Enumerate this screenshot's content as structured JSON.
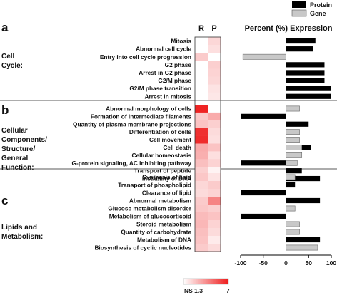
{
  "chart_data": {
    "type": "bar",
    "bar_title": "Percent (%) Expression",
    "heatmap_columns": [
      "R",
      "P"
    ],
    "x_ticks": [
      "-100",
      "-50",
      "0",
      "50",
      "100"
    ],
    "xlim": [
      -100,
      100
    ],
    "color_scale": {
      "low_label": "NS 1.3",
      "high_label": "7",
      "low_value": 1.3,
      "high_value": 7,
      "low_color": "#ffffff",
      "high_color": "#ee1c1c"
    },
    "legend": {
      "protein_label": "Protein",
      "gene_label": "Gene",
      "protein_color": "#000000",
      "gene_color": "#c8c8c8"
    },
    "series_names": [
      "Protein",
      "Gene"
    ],
    "sections": [
      {
        "letter": "a",
        "title": "Cell Cycle:",
        "rows": [
          {
            "label": "Mitosis",
            "R": 1.3,
            "P": 2.3,
            "protein": 65,
            "gene": null
          },
          {
            "label": "Abnormal cell cycle",
            "R": 1.3,
            "P": 2.1,
            "protein": 60,
            "gene": null
          },
          {
            "label": "Entry into cell cycle progression",
            "R": 2.6,
            "P": 1.3,
            "protein": null,
            "gene": -95
          },
          {
            "label": "G2 phase",
            "R": 1.3,
            "P": 2.5,
            "protein": 85,
            "gene": null
          },
          {
            "label": "Arrest in G2 phase",
            "R": 1.3,
            "P": 2.4,
            "protein": 85,
            "gene": null
          },
          {
            "label": "G2/M phase",
            "R": 1.3,
            "P": 2.3,
            "protein": 85,
            "gene": null
          },
          {
            "label": "G2/M phase transition",
            "R": 1.3,
            "P": 2.0,
            "protein": 100,
            "gene": null
          },
          {
            "label": "Arrest in mitosis",
            "R": 1.3,
            "P": 1.9,
            "protein": 100,
            "gene": null
          }
        ]
      },
      {
        "letter": "b",
        "title": "Cellular Components/ Structure/ General Function:",
        "rows": [
          {
            "label": "Abnormal morphology of cells",
            "R": 6.8,
            "P": 1.3,
            "protein": null,
            "gene": 30
          },
          {
            "label": "Formation of intermediate filaments",
            "R": 2.6,
            "P": 3.4,
            "protein": -100,
            "gene": null
          },
          {
            "label": "Quantity of plasma membrane projections",
            "R": 2.8,
            "P": 2.5,
            "protein": 50,
            "gene": null
          },
          {
            "label": "Differentiation of cells",
            "R": 6.5,
            "P": 2.2,
            "protein": null,
            "gene": 30
          },
          {
            "label": "Cell movement",
            "R": 6.6,
            "P": 2.1,
            "protein": null,
            "gene": 30
          },
          {
            "label": "Cell death",
            "R": 3.4,
            "P": 2.8,
            "protein": 55,
            "gene": 35
          },
          {
            "label": "Cellular homeostasis",
            "R": 3.3,
            "P": 2.1,
            "protein": null,
            "gene": 35
          },
          {
            "label": "G-protein signaling, AC inhibiting pathway",
            "R": 2.9,
            "P": 2.4,
            "protein": -100,
            "gene": 25
          },
          {
            "label": "Transport of peptide",
            "R": 2.5,
            "P": 1.6,
            "protein": 35,
            "gene": null
          },
          {
            "label": "Instability of DNA",
            "R": 2.2,
            "P": 3.0,
            "protein": 75,
            "gene": null
          }
        ]
      },
      {
        "letter": "c",
        "title": "Lipids and Metabolism:",
        "rows": [
          {
            "label": "Synthesis of lipid",
            "R": 2.7,
            "P": 2.0,
            "protein": null,
            "gene": 20
          },
          {
            "label": "Transport of phospholipid",
            "R": 2.3,
            "P": 2.6,
            "protein": 20,
            "gene": null
          },
          {
            "label": "Clearance of lipid",
            "R": 2.2,
            "P": 2.4,
            "protein": -100,
            "gene": null
          },
          {
            "label": "Abnormal metabolism",
            "R": 2.6,
            "P": 4.4,
            "protein": 75,
            "gene": null
          },
          {
            "label": "Glucose metabolism disorder",
            "R": 2.7,
            "P": 2.5,
            "protein": null,
            "gene": 20
          },
          {
            "label": "Metabolism of glucocorticoid",
            "R": 3.0,
            "P": 2.8,
            "protein": -100,
            "gene": null
          },
          {
            "label": "Steroid metabolism",
            "R": 3.1,
            "P": 2.4,
            "protein": null,
            "gene": 30
          },
          {
            "label": "Quantity of carbohydrate",
            "R": 2.9,
            "P": 2.2,
            "protein": null,
            "gene": 30
          },
          {
            "label": "Metabolism of DNA",
            "R": 2.8,
            "P": 1.8,
            "protein": 75,
            "gene": null
          },
          {
            "label": "Biosynthesis of cyclic nucleotides",
            "R": 2.6,
            "P": 2.2,
            "protein": null,
            "gene": 70
          }
        ]
      }
    ]
  }
}
